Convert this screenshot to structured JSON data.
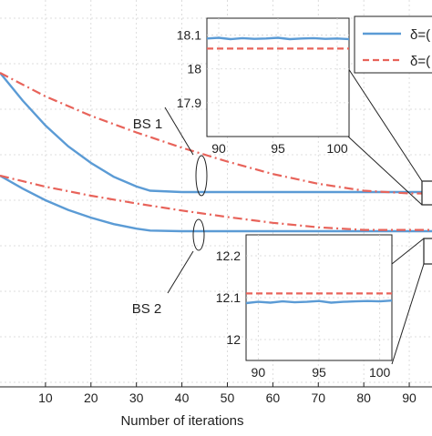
{
  "chart_data": {
    "type": "line",
    "xlabel": "Number of iterations",
    "ylabel": "",
    "xlim": [
      0,
      95
    ],
    "x_ticks": [
      10,
      20,
      30,
      40,
      50,
      60,
      70,
      80,
      90
    ],
    "x_tick_labels": [
      "10",
      "20",
      "30",
      "40",
      "50",
      "60",
      "70",
      "80",
      "90"
    ],
    "legend": {
      "placement": "top-right",
      "entries": [
        {
          "label": "δ=(",
          "style": "solid",
          "color": "#5b9bd5"
        },
        {
          "label": "δ=(",
          "style": "dash-dot",
          "color": "#e8635a"
        }
      ]
    },
    "annotations": [
      "BS 1",
      "BS 2"
    ],
    "series": [
      {
        "group": "BS 1",
        "style": "solid",
        "x": [
          0,
          5,
          10,
          15,
          20,
          25,
          30,
          33,
          40,
          50,
          60,
          70,
          80,
          90,
          95
        ],
        "y": [
          18.95,
          18.75,
          18.57,
          18.42,
          18.3,
          18.2,
          18.13,
          18.1,
          18.09,
          18.09,
          18.09,
          18.09,
          18.09,
          18.09,
          18.09
        ]
      },
      {
        "group": "BS 1",
        "style": "dash-dot",
        "x": [
          0,
          10,
          20,
          30,
          40,
          50,
          60,
          70,
          80,
          90,
          95
        ],
        "y": [
          18.95,
          18.78,
          18.64,
          18.52,
          18.41,
          18.31,
          18.22,
          18.15,
          18.1,
          18.08,
          18.08
        ]
      },
      {
        "group": "BS 2",
        "style": "solid",
        "x": [
          0,
          5,
          10,
          15,
          20,
          25,
          30,
          33,
          40,
          50,
          60,
          70,
          80,
          90,
          95
        ],
        "y": [
          12.95,
          12.75,
          12.57,
          12.42,
          12.3,
          12.2,
          12.13,
          12.1,
          12.09,
          12.09,
          12.09,
          12.09,
          12.09,
          12.09,
          12.09
        ]
      },
      {
        "group": "BS 2",
        "style": "dash-dot",
        "x": [
          0,
          10,
          20,
          30,
          40,
          50,
          60,
          70,
          80,
          90,
          95
        ],
        "y": [
          12.95,
          12.78,
          12.64,
          12.52,
          12.41,
          12.31,
          12.22,
          12.15,
          12.11,
          12.11,
          12.11
        ]
      }
    ],
    "insets": [
      {
        "group": "BS 1",
        "xlim": [
          89,
          101
        ],
        "ylim": [
          17.8,
          18.15
        ],
        "x_ticks": [
          90,
          95,
          100
        ],
        "x_tick_labels": [
          "90",
          "95",
          "100"
        ],
        "y_ticks": [
          17.9,
          18,
          18.1
        ],
        "y_tick_labels": [
          "17.9",
          "18",
          "18.1"
        ],
        "solid": {
          "x": [
            89,
            90,
            91,
            92,
            93,
            94,
            95,
            96,
            97,
            98,
            99,
            100,
            101
          ],
          "y": [
            18.09,
            18.092,
            18.088,
            18.091,
            18.089,
            18.09,
            18.092,
            18.088,
            18.09,
            18.091,
            18.089,
            18.09,
            18.088
          ]
        },
        "dashed": {
          "x": [
            89,
            101
          ],
          "y": [
            18.06,
            18.06
          ]
        }
      },
      {
        "group": "BS 2",
        "xlim": [
          89,
          101
        ],
        "ylim": [
          11.95,
          12.25
        ],
        "x_ticks": [
          90,
          95,
          100
        ],
        "x_tick_labels": [
          "90",
          "95",
          "100"
        ],
        "y_ticks": [
          12,
          12.1,
          12.2
        ],
        "y_tick_labels": [
          "12",
          "12.1",
          "12.2"
        ],
        "solid": {
          "x": [
            89,
            90,
            91,
            92,
            93,
            94,
            95,
            96,
            97,
            98,
            99,
            100,
            101
          ],
          "y": [
            12.087,
            12.09,
            12.088,
            12.091,
            12.089,
            12.09,
            12.092,
            12.088,
            12.09,
            12.091,
            12.092,
            12.091,
            12.093
          ]
        },
        "dashed": {
          "x": [
            89,
            101
          ],
          "y": [
            12.11,
            12.11
          ]
        }
      }
    ]
  }
}
